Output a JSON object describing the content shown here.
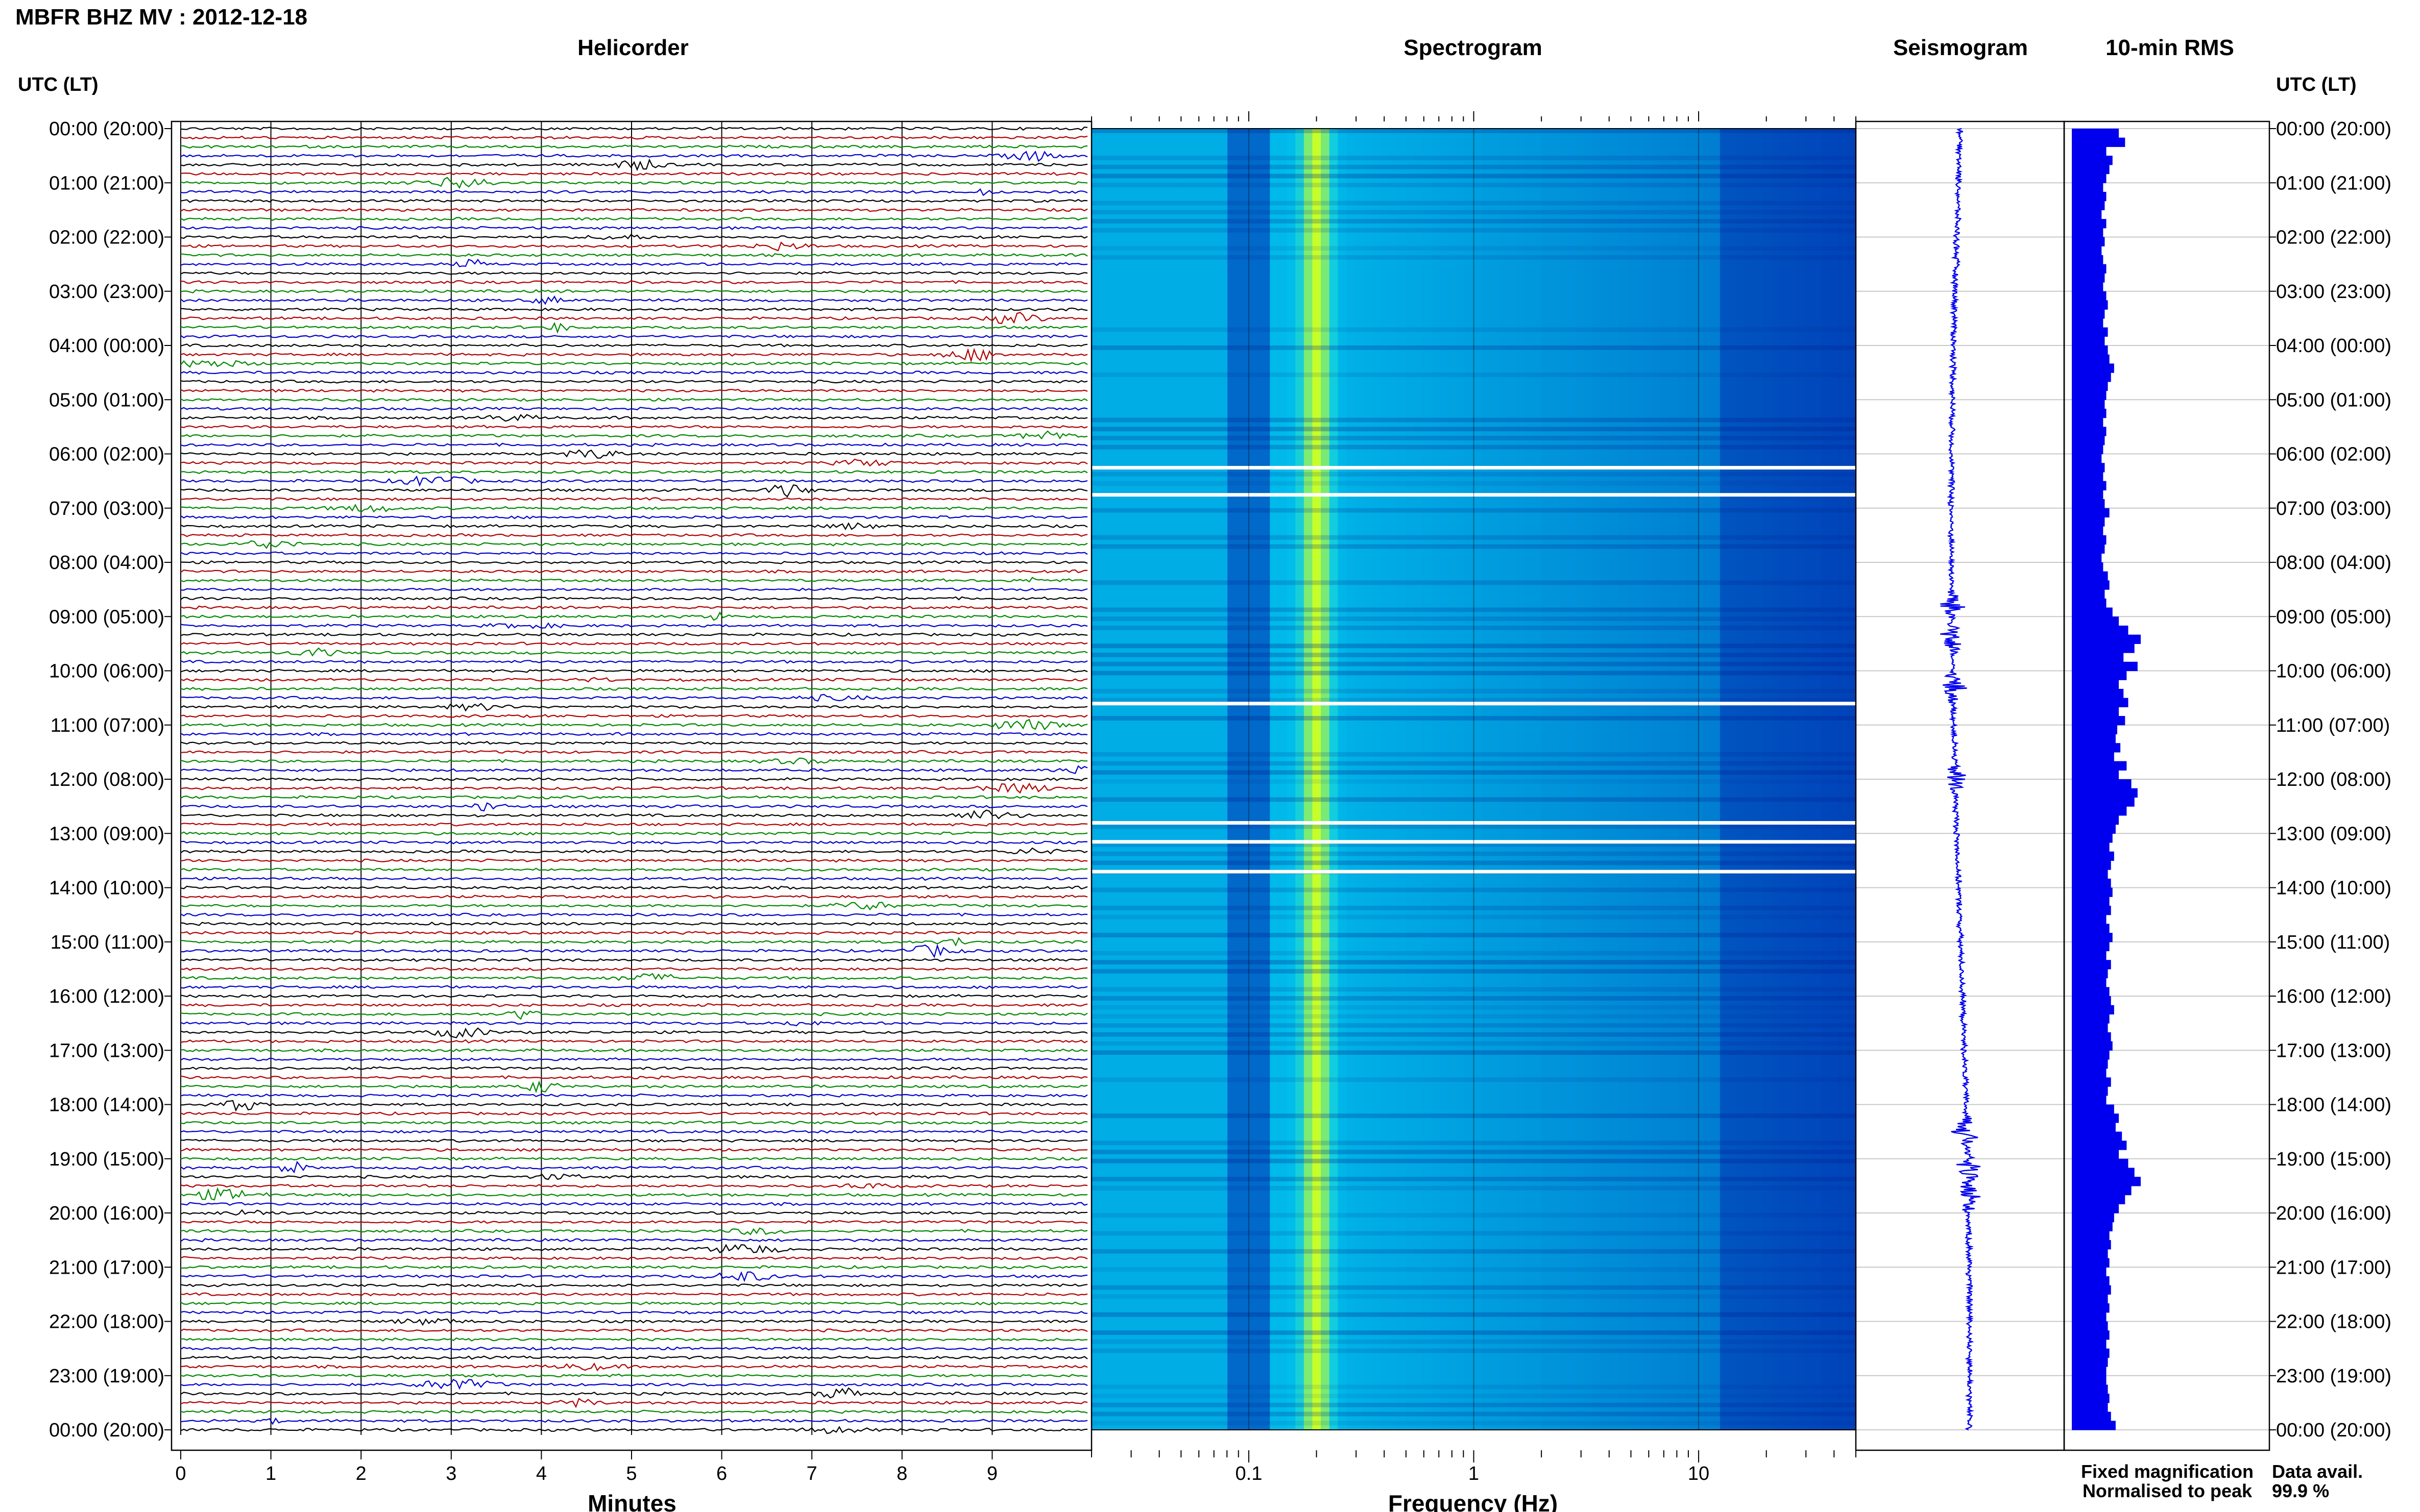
{
  "header": {
    "station_title": "MBFR BHZ MV : 2012-12-18",
    "utc_label_left": "UTC (LT)",
    "utc_label_right": "UTC (LT)"
  },
  "panels": {
    "helicorder_title": "Helicorder",
    "spectrogram_title": "Spectrogram",
    "seismogram_title": "Seismogram",
    "rms_title": "10-min RMS"
  },
  "time_labels": [
    "00:00 (20:00)",
    "01:00 (21:00)",
    "02:00 (22:00)",
    "03:00 (23:00)",
    "04:00 (00:00)",
    "05:00 (01:00)",
    "06:00 (02:00)",
    "07:00 (03:00)",
    "08:00 (04:00)",
    "09:00 (05:00)",
    "10:00 (06:00)",
    "11:00 (07:00)",
    "12:00 (08:00)",
    "13:00 (09:00)",
    "14:00 (10:00)",
    "15:00 (11:00)",
    "16:00 (12:00)",
    "17:00 (13:00)",
    "18:00 (14:00)",
    "19:00 (15:00)",
    "20:00 (16:00)",
    "21:00 (17:00)",
    "22:00 (18:00)",
    "23:00 (19:00)",
    "00:00 (20:00)"
  ],
  "legend": {
    "fixed": "Fixed magnification",
    "normalised": "Normalised to peak",
    "fixed_color": "#0000ee",
    "normalised_color": "#ee0000",
    "data_avail_label": "Data avail.",
    "data_avail_value": "99.9 %"
  },
  "chart_data": [
    {
      "type": "line",
      "title": "Helicorder",
      "xlabel": "Minutes",
      "ylabel": "UTC (LT)",
      "xlim": [
        0,
        10
      ],
      "x_ticks": [
        "0",
        "1",
        "2",
        "3",
        "4",
        "5",
        "6",
        "7",
        "8",
        "9"
      ],
      "trace_colors": [
        "#000000",
        "#b00000",
        "#008800",
        "#0000cc"
      ],
      "traces_per_hour": 6,
      "grid": true
    },
    {
      "type": "heatmap",
      "title": "Spectrogram",
      "xlabel": "Frequency (Hz)",
      "x_scale": "log",
      "xlim": [
        0.02,
        50
      ],
      "x_ticks": [
        "0.1",
        "1",
        "10"
      ],
      "dominant_frequency_hz": 0.2,
      "color_low": "#0000aa",
      "color_high": "#ccff33",
      "data_gaps_utc_hours": [
        6.25,
        6.75,
        10.6,
        12.8,
        13.15,
        13.7
      ]
    },
    {
      "type": "line",
      "title": "Seismogram",
      "color": "#0000ee",
      "events_utc_hours": [
        8.8,
        9.4,
        10.3,
        12.0,
        18.5,
        19.2,
        19.7
      ]
    },
    {
      "type": "bar",
      "title": "10-min RMS",
      "color": "#0000ee",
      "orientation": "horizontal",
      "bins_per_hour": 6,
      "relative_values": [
        0.3,
        0.34,
        0.22,
        0.26,
        0.24,
        0.22,
        0.2,
        0.22,
        0.21,
        0.19,
        0.22,
        0.2,
        0.21,
        0.19,
        0.2,
        0.22,
        0.21,
        0.2,
        0.22,
        0.23,
        0.21,
        0.2,
        0.23,
        0.21,
        0.23,
        0.24,
        0.27,
        0.25,
        0.23,
        0.22,
        0.21,
        0.22,
        0.2,
        0.22,
        0.21,
        0.2,
        0.19,
        0.21,
        0.2,
        0.22,
        0.2,
        0.21,
        0.24,
        0.21,
        0.2,
        0.22,
        0.21,
        0.19,
        0.2,
        0.23,
        0.24,
        0.21,
        0.22,
        0.26,
        0.3,
        0.36,
        0.44,
        0.4,
        0.33,
        0.42,
        0.35,
        0.3,
        0.33,
        0.36,
        0.3,
        0.34,
        0.29,
        0.28,
        0.31,
        0.27,
        0.35,
        0.3,
        0.38,
        0.42,
        0.4,
        0.35,
        0.3,
        0.28,
        0.26,
        0.24,
        0.27,
        0.25,
        0.23,
        0.25,
        0.26,
        0.24,
        0.25,
        0.22,
        0.24,
        0.26,
        0.24,
        0.22,
        0.25,
        0.23,
        0.22,
        0.24,
        0.25,
        0.27,
        0.24,
        0.23,
        0.25,
        0.26,
        0.24,
        0.23,
        0.22,
        0.25,
        0.23,
        0.22,
        0.27,
        0.3,
        0.28,
        0.32,
        0.35,
        0.3,
        0.36,
        0.4,
        0.44,
        0.38,
        0.34,
        0.3,
        0.27,
        0.26,
        0.24,
        0.25,
        0.23,
        0.24,
        0.22,
        0.24,
        0.25,
        0.23,
        0.24,
        0.22,
        0.23,
        0.24,
        0.22,
        0.24,
        0.23,
        0.22,
        0.22,
        0.23,
        0.24,
        0.23,
        0.25,
        0.28
      ]
    }
  ]
}
